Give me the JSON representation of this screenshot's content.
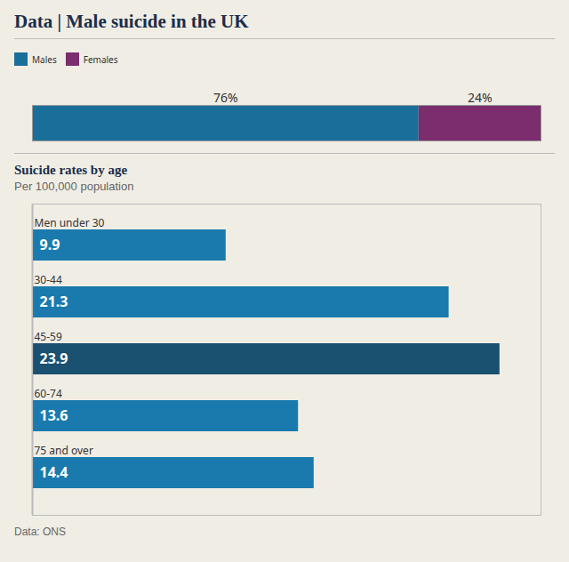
{
  "chart_data": [
    {
      "type": "bar",
      "orientation": "horizontal",
      "stacked": true,
      "title": "Data | Male suicide in the UK",
      "categories": [
        null
      ],
      "series": [
        {
          "name": "Males",
          "color": "#1a6f9a",
          "values": [
            76
          ],
          "value_labels": [
            "76%"
          ]
        },
        {
          "name": "Females",
          "color": "#7b2d6e",
          "values": [
            24
          ],
          "value_labels": [
            "24%"
          ]
        }
      ],
      "xlim": [
        0,
        100
      ],
      "legend": "top-left",
      "data_labels": true,
      "tick_labels": false
    },
    {
      "type": "bar",
      "orientation": "horizontal",
      "title": "Suicide rates by age",
      "subtitle": "Per 100,000 population",
      "categories": [
        "Men under 30",
        "30-44",
        "45-59",
        "60-74",
        "75 and over"
      ],
      "values": [
        9.9,
        21.3,
        23.9,
        13.6,
        14.4
      ],
      "colors": [
        "#1a7aad",
        "#1a7aad",
        "#1a5070",
        "#1a7aad",
        "#1a7aad"
      ],
      "xlim": [
        0,
        26
      ],
      "data_labels": true,
      "annotations": [
        "Data: ONS"
      ]
    }
  ]
}
